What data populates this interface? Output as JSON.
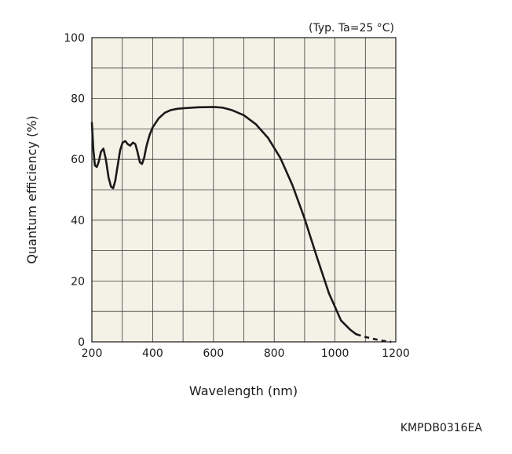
{
  "chart_data": {
    "type": "line",
    "note": "(Typ. Ta=25 °C)",
    "xlabel": "Wavelength (nm)",
    "ylabel": "Quantum efficiency (%)",
    "xlim": [
      200,
      1200
    ],
    "ylim": [
      0,
      100
    ],
    "xticks": [
      "200",
      "400",
      "600",
      "800",
      "1000",
      "1200"
    ],
    "yticks": [
      "0",
      "20",
      "40",
      "60",
      "80",
      "100"
    ],
    "grid": true,
    "series": [
      {
        "solid": [
          [
            200,
            72
          ],
          [
            205,
            63
          ],
          [
            210,
            58
          ],
          [
            216,
            57.5
          ],
          [
            222,
            59
          ],
          [
            230,
            62.5
          ],
          [
            238,
            63.5
          ],
          [
            246,
            60
          ],
          [
            255,
            54
          ],
          [
            263,
            51
          ],
          [
            270,
            50.5
          ],
          [
            277,
            53
          ],
          [
            285,
            58
          ],
          [
            293,
            63
          ],
          [
            301,
            65.5
          ],
          [
            310,
            66
          ],
          [
            318,
            65
          ],
          [
            326,
            64.5
          ],
          [
            335,
            65.5
          ],
          [
            343,
            65
          ],
          [
            350,
            62.5
          ],
          [
            358,
            59
          ],
          [
            365,
            58.5
          ],
          [
            372,
            60.5
          ],
          [
            380,
            64.5
          ],
          [
            390,
            68
          ],
          [
            400,
            70.5
          ],
          [
            420,
            73.5
          ],
          [
            440,
            75.3
          ],
          [
            460,
            76.2
          ],
          [
            480,
            76.6
          ],
          [
            500,
            76.8
          ],
          [
            550,
            77.1
          ],
          [
            600,
            77.2
          ],
          [
            630,
            77
          ],
          [
            660,
            76.2
          ],
          [
            700,
            74.5
          ],
          [
            740,
            71.5
          ],
          [
            780,
            67
          ],
          [
            820,
            60.5
          ],
          [
            860,
            51.5
          ],
          [
            900,
            40.5
          ],
          [
            940,
            28
          ],
          [
            980,
            16
          ],
          [
            1020,
            7
          ],
          [
            1050,
            4
          ],
          [
            1070,
            2.5
          ]
        ],
        "dashed": [
          [
            1070,
            2.5
          ],
          [
            1100,
            1.6
          ],
          [
            1130,
            0.9
          ],
          [
            1160,
            0.3
          ],
          [
            1185,
            0
          ]
        ]
      }
    ]
  },
  "code": "KMPDB0316EA",
  "colors": {
    "plot_bg": "#f4f1e6",
    "grid": "#3c3c3c",
    "curve": "#1a1a1a"
  }
}
